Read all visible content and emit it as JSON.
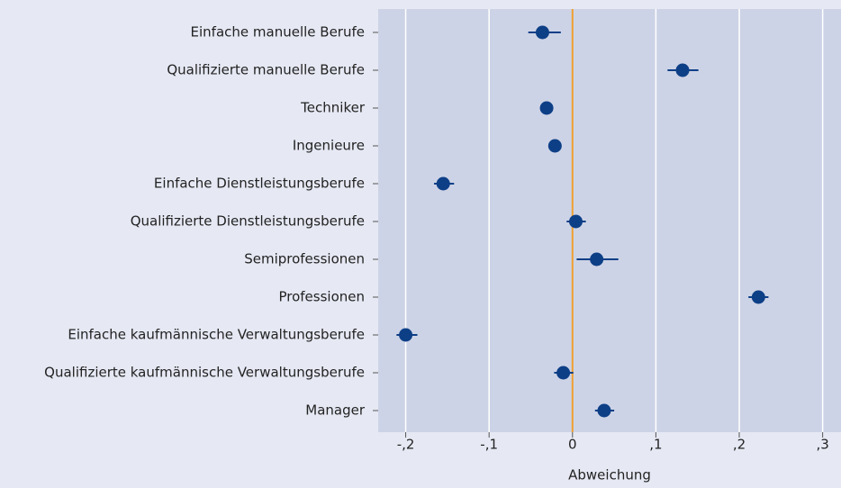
{
  "chart_data": {
    "type": "dot",
    "xlabel": "Abweichung",
    "categories": [
      "Einfache manuelle Berufe",
      "Qualifizierte manuelle Berufe",
      "Techniker",
      "Ingenieure",
      "Einfache Dienstleistungsberufe",
      "Qualifizierte Dienstleistungsberufe",
      "Semiprofessionen",
      "Professionen",
      "Einfache kaufmännische Verwaltungsberufe",
      "Qualifizierte kaufmännische Verwaltungsberufe",
      "Manager"
    ],
    "values": [
      -0.036,
      0.132,
      -0.031,
      -0.021,
      -0.155,
      0.004,
      0.029,
      0.223,
      -0.2,
      -0.011,
      0.038
    ],
    "ci_low": [
      -0.053,
      0.114,
      -0.035,
      -0.025,
      -0.166,
      -0.007,
      0.005,
      0.211,
      -0.211,
      -0.022,
      0.027
    ],
    "ci_high": [
      -0.014,
      0.151,
      -0.028,
      -0.017,
      -0.142,
      0.016,
      0.055,
      0.235,
      -0.186,
      0.001,
      0.05
    ],
    "color": "#0d3f87",
    "reference_line": 0,
    "reference_color": "#f0a030",
    "xlim": [
      -0.233,
      0.322
    ],
    "xticks": [
      {
        "value": -0.2,
        "label": "-,2"
      },
      {
        "value": -0.1,
        "label": "-,1"
      },
      0,
      {
        "value": 0.1,
        "label": ",1"
      },
      {
        "value": 0.2,
        "label": ",2"
      },
      {
        "value": 0.3,
        "label": ",3"
      }
    ],
    "grid": true
  }
}
